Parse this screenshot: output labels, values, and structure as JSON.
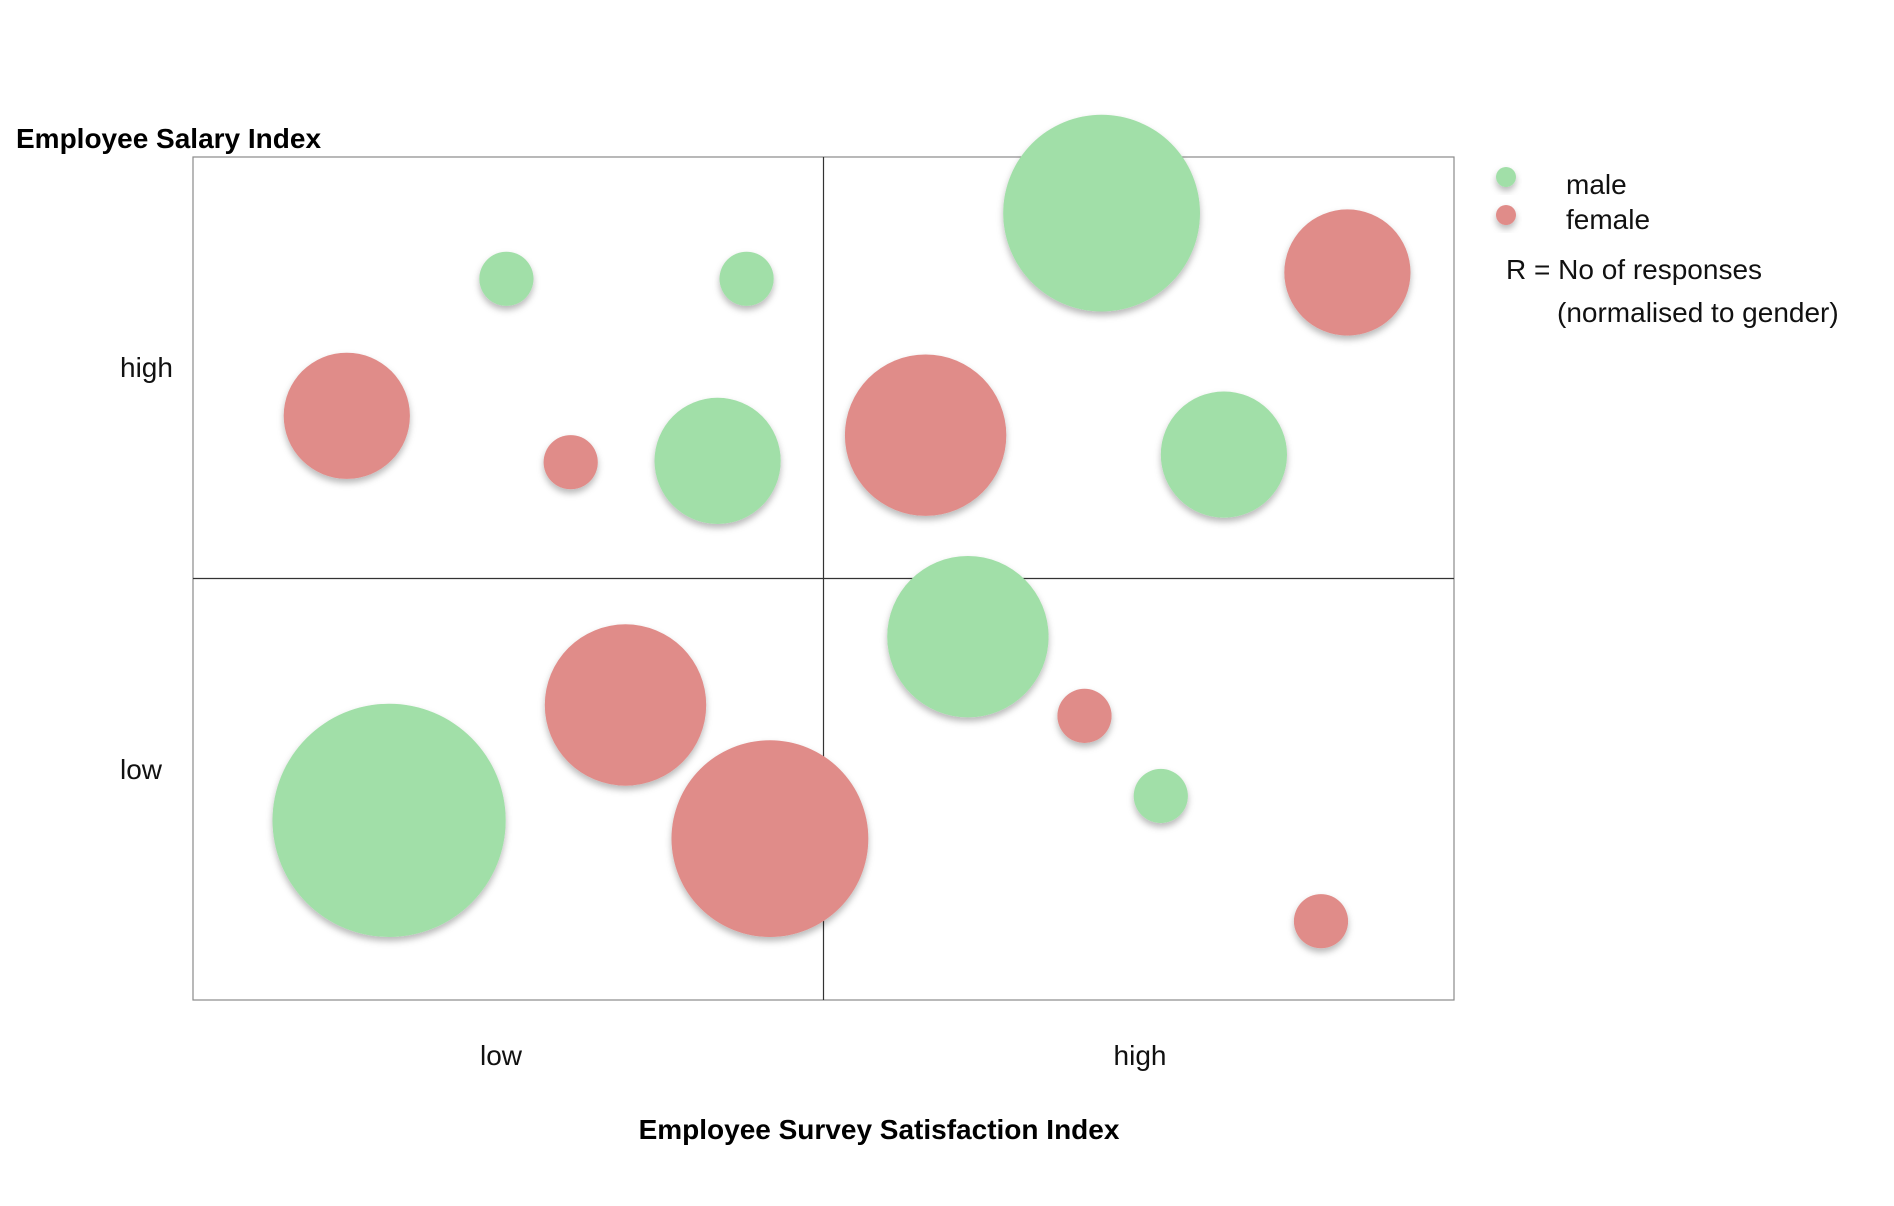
{
  "chart_data": {
    "type": "scatter",
    "subtype": "bubble",
    "ylabel": "Employee Salary Index",
    "xlabel": "Employee Survey Satisfaction Index",
    "x_ticks": [
      "low",
      "high"
    ],
    "y_ticks": [
      "high",
      "low"
    ],
    "xlim": [
      0,
      2
    ],
    "ylim": [
      0,
      2
    ],
    "grid": "quadrant",
    "legend": {
      "placement": "top-right",
      "entries": [
        {
          "label": "male",
          "color": "#a1dfa8"
        },
        {
          "label": "female",
          "color": "#e08c89"
        }
      ],
      "note_line1": "R = No of responses",
      "note_line2": "(normalised to gender)"
    },
    "series": [
      {
        "name": "male",
        "color": "#a1dfa8",
        "points": [
          {
            "x": 0.497,
            "y": 1.711,
            "r": 0.043
          },
          {
            "x": 0.878,
            "y": 1.711,
            "r": 0.043
          },
          {
            "x": 0.832,
            "y": 1.279,
            "r": 0.1
          },
          {
            "x": 1.441,
            "y": 1.867,
            "r": 0.156
          },
          {
            "x": 1.635,
            "y": 1.294,
            "r": 0.1
          },
          {
            "x": 1.229,
            "y": 0.862,
            "r": 0.128
          },
          {
            "x": 1.535,
            "y": 0.484,
            "r": 0.043
          },
          {
            "x": 0.311,
            "y": 0.426,
            "r": 0.185
          }
        ]
      },
      {
        "name": "female",
        "color": "#e08c89",
        "points": [
          {
            "x": 0.244,
            "y": 1.386,
            "r": 0.1
          },
          {
            "x": 0.599,
            "y": 1.276,
            "r": 0.043
          },
          {
            "x": 1.831,
            "y": 1.726,
            "r": 0.1
          },
          {
            "x": 1.162,
            "y": 1.34,
            "r": 0.128
          },
          {
            "x": 1.414,
            "y": 0.674,
            "r": 0.043
          },
          {
            "x": 1.789,
            "y": 0.187,
            "r": 0.043
          },
          {
            "x": 0.686,
            "y": 0.7,
            "r": 0.128
          },
          {
            "x": 0.915,
            "y": 0.383,
            "r": 0.156
          }
        ]
      }
    ]
  }
}
